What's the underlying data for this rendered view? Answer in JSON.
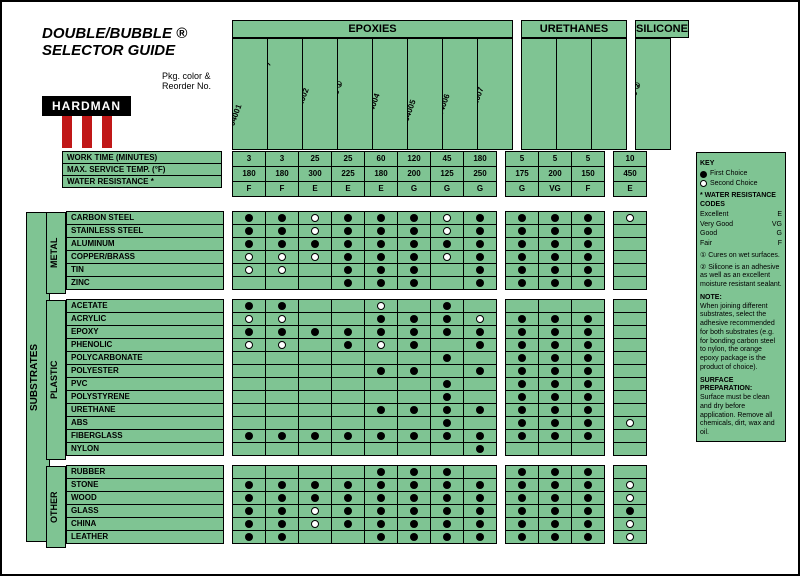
{
  "title_line1": "DOUBLE/BUBBLE ®",
  "title_line2": "SELECTOR GUIDE",
  "subtitle": "Pkg. color &\nReorder No.",
  "brand": "HARDMAN",
  "colors": {
    "cell_bg": "#7fc493",
    "border": "#000000",
    "first_choice": "#000000",
    "second_choice": "#ffffff",
    "logo_red": "#c01818"
  },
  "groups": [
    {
      "name": "EPOXIES",
      "cols": [
        {
          "label": "RED 04001"
        },
        {
          "label": "RED 04008 (NON-SAG)"
        },
        {
          "label": "YELLOW 04002"
        },
        {
          "label": "PURPLE 04003 ①"
        },
        {
          "label": "GREEN 04004"
        },
        {
          "label": "BLUE 04005"
        },
        {
          "label": "BLACK 04006"
        },
        {
          "label": "ORANGE 04007"
        }
      ]
    },
    {
      "name": "URETHANES",
      "cols": [
        {
          "label": "GREEN/BEIGE D-50 04022"
        },
        {
          "label": "BLUE/BEIGE D-85 04023"
        },
        {
          "label": "PURPLE/BEIGE A-85 04024"
        }
      ]
    },
    {
      "name": "SILICONE",
      "cols": [
        {
          "label": "BROWN 04030 ②"
        }
      ]
    }
  ],
  "spec_rows": [
    {
      "label": "WORK TIME (MINUTES)",
      "vals": [
        [
          "3",
          "3",
          "25",
          "25",
          "60",
          "120",
          "45",
          "180"
        ],
        [
          "5",
          "5",
          "5"
        ],
        [
          "10"
        ]
      ]
    },
    {
      "label": "MAX. SERVICE TEMP. (°F)",
      "vals": [
        [
          "180",
          "180",
          "300",
          "225",
          "180",
          "200",
          "125",
          "250"
        ],
        [
          "175",
          "200",
          "150"
        ],
        [
          "450"
        ]
      ]
    },
    {
      "label": "WATER RESISTANCE *",
      "vals": [
        [
          "F",
          "F",
          "E",
          "E",
          "E",
          "G",
          "G",
          "G"
        ],
        [
          "G",
          "VG",
          "F"
        ],
        [
          "E"
        ]
      ]
    }
  ],
  "substrate_tab": "SUBSTRATES",
  "sections": [
    {
      "name": "METAL",
      "rows": [
        {
          "l": "CARBON STEEL",
          "d": [
            [
              "f",
              "f",
              "s",
              "f",
              "f",
              "f",
              "s",
              "f"
            ],
            [
              "f",
              "f",
              "f"
            ],
            [
              "s"
            ]
          ]
        },
        {
          "l": "STAINLESS STEEL",
          "d": [
            [
              "f",
              "f",
              "s",
              "f",
              "f",
              "f",
              "s",
              "f"
            ],
            [
              "f",
              "f",
              "f"
            ],
            [
              ""
            ]
          ]
        },
        {
          "l": "ALUMINUM",
          "d": [
            [
              "f",
              "f",
              "f",
              "f",
              "f",
              "f",
              "f",
              "f"
            ],
            [
              "f",
              "f",
              "f"
            ],
            [
              ""
            ]
          ]
        },
        {
          "l": "COPPER/BRASS",
          "d": [
            [
              "s",
              "s",
              "s",
              "f",
              "f",
              "f",
              "s",
              "f"
            ],
            [
              "f",
              "f",
              "f"
            ],
            [
              ""
            ]
          ]
        },
        {
          "l": "TIN",
          "d": [
            [
              "s",
              "s",
              "",
              "f",
              "f",
              "f",
              "",
              "f"
            ],
            [
              "f",
              "f",
              "f"
            ],
            [
              ""
            ]
          ]
        },
        {
          "l": "ZINC",
          "d": [
            [
              "",
              "",
              "",
              "f",
              "f",
              "f",
              "",
              "f"
            ],
            [
              "f",
              "f",
              "f"
            ],
            [
              ""
            ]
          ]
        }
      ]
    },
    {
      "name": "PLASTIC",
      "rows": [
        {
          "l": "ACETATE",
          "d": [
            [
              "f",
              "f",
              "",
              "",
              "s",
              "",
              "f",
              ""
            ],
            [
              "",
              "",
              ""
            ],
            [
              ""
            ]
          ]
        },
        {
          "l": "ACRYLIC",
          "d": [
            [
              "s",
              "s",
              "",
              "",
              "f",
              "f",
              "f",
              "s"
            ],
            [
              "f",
              "f",
              "f"
            ],
            [
              ""
            ]
          ]
        },
        {
          "l": "EPOXY",
          "d": [
            [
              "f",
              "f",
              "f",
              "f",
              "f",
              "f",
              "f",
              "f"
            ],
            [
              "f",
              "f",
              "f"
            ],
            [
              ""
            ]
          ]
        },
        {
          "l": "PHENOLIC",
          "d": [
            [
              "s",
              "s",
              "",
              "f",
              "s",
              "f",
              "",
              "f"
            ],
            [
              "f",
              "f",
              "f"
            ],
            [
              ""
            ]
          ]
        },
        {
          "l": "POLYCARBONATE",
          "d": [
            [
              "",
              "",
              "",
              "",
              "",
              "",
              "f",
              ""
            ],
            [
              "f",
              "f",
              "f"
            ],
            [
              ""
            ]
          ]
        },
        {
          "l": "POLYESTER",
          "d": [
            [
              "",
              "",
              "",
              "",
              "f",
              "f",
              "",
              "f"
            ],
            [
              "f",
              "f",
              "f"
            ],
            [
              ""
            ]
          ]
        },
        {
          "l": "PVC",
          "d": [
            [
              "",
              "",
              "",
              "",
              "",
              "",
              "f",
              ""
            ],
            [
              "f",
              "f",
              "f"
            ],
            [
              ""
            ]
          ]
        },
        {
          "l": "POLYSTYRENE",
          "d": [
            [
              "",
              "",
              "",
              "",
              "",
              "",
              "f",
              ""
            ],
            [
              "f",
              "f",
              "f"
            ],
            [
              ""
            ]
          ]
        },
        {
          "l": "URETHANE",
          "d": [
            [
              "",
              "",
              "",
              "",
              "f",
              "f",
              "f",
              "f"
            ],
            [
              "f",
              "f",
              "f"
            ],
            [
              ""
            ]
          ]
        },
        {
          "l": "ABS",
          "d": [
            [
              "",
              "",
              "",
              "",
              "",
              "",
              "f",
              ""
            ],
            [
              "f",
              "f",
              "f"
            ],
            [
              "s"
            ]
          ]
        },
        {
          "l": "FIBERGLASS",
          "d": [
            [
              "f",
              "f",
              "f",
              "f",
              "f",
              "f",
              "f",
              "f"
            ],
            [
              "f",
              "f",
              "f"
            ],
            [
              ""
            ]
          ]
        },
        {
          "l": "NYLON",
          "d": [
            [
              "",
              "",
              "",
              "",
              "",
              "",
              "",
              "f"
            ],
            [
              "",
              "",
              ""
            ],
            [
              ""
            ]
          ]
        }
      ]
    },
    {
      "name": "OTHER",
      "rows": [
        {
          "l": "RUBBER",
          "d": [
            [
              "",
              "",
              "",
              "",
              "f",
              "f",
              "f",
              ""
            ],
            [
              "f",
              "f",
              "f"
            ],
            [
              ""
            ]
          ]
        },
        {
          "l": "STONE",
          "d": [
            [
              "f",
              "f",
              "f",
              "f",
              "f",
              "f",
              "f",
              "f"
            ],
            [
              "f",
              "f",
              "f"
            ],
            [
              "s"
            ]
          ]
        },
        {
          "l": "WOOD",
          "d": [
            [
              "f",
              "f",
              "f",
              "f",
              "f",
              "f",
              "f",
              "f"
            ],
            [
              "f",
              "f",
              "f"
            ],
            [
              "s"
            ]
          ]
        },
        {
          "l": "GLASS",
          "d": [
            [
              "f",
              "f",
              "s",
              "f",
              "f",
              "f",
              "f",
              "f"
            ],
            [
              "f",
              "f",
              "f"
            ],
            [
              "f"
            ]
          ]
        },
        {
          "l": "CHINA",
          "d": [
            [
              "f",
              "f",
              "s",
              "f",
              "f",
              "f",
              "f",
              "f"
            ],
            [
              "f",
              "f",
              "f"
            ],
            [
              "s"
            ]
          ]
        },
        {
          "l": "LEATHER",
          "d": [
            [
              "f",
              "f",
              "",
              "",
              "f",
              "f",
              "f",
              "f"
            ],
            [
              "f",
              "f",
              "f"
            ],
            [
              "s"
            ]
          ]
        }
      ]
    }
  ],
  "key": {
    "title": "KEY",
    "first": "First Choice",
    "second": "Second Choice",
    "wr_title": "* WATER RESISTANCE CODES",
    "wr": [
      [
        "Excellent",
        "E"
      ],
      [
        "Very Good",
        "VG"
      ],
      [
        "Good",
        "G"
      ],
      [
        "Fair",
        "F"
      ]
    ],
    "note1": "① Cures on wet surfaces.",
    "note2": "② Silicone is an adhesive as well as an excellent moisture resistant sealant.",
    "note_hd": "NOTE:",
    "note_body": "When joining different substrates, select the adhesive recommended for both substrates (e.g. for bonding carbon steel to nylon, the orange epoxy package is the product of choice).",
    "surf_hd": "SURFACE PREPARATION:",
    "surf_body": "Surface must be clean and dry before application. Remove all chemicals, dirt, wax and oil."
  }
}
